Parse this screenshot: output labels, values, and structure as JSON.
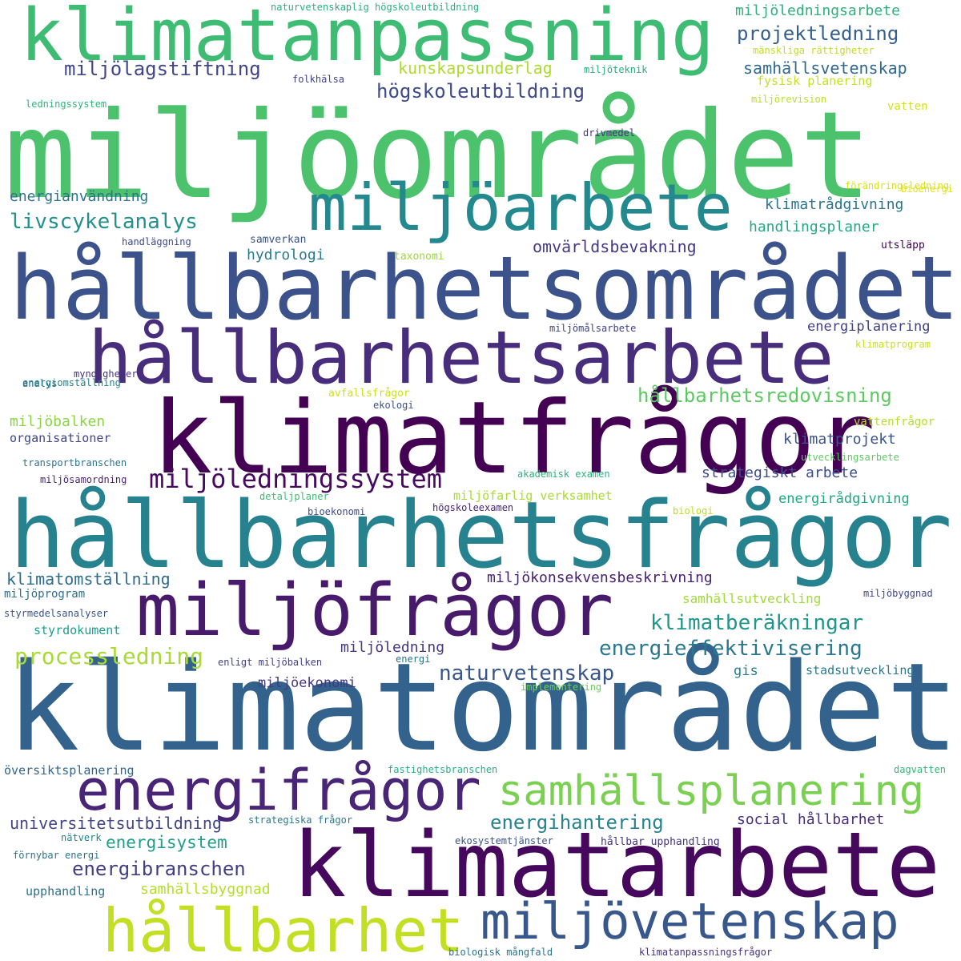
{
  "words": [
    {
      "text": "miljöområdet",
      "color": "#4cc26c"
    },
    {
      "text": "klimatområdet",
      "color": "#33638d"
    },
    {
      "text": "hållbarhetsområdet",
      "color": "#3b528b"
    },
    {
      "text": "hållbarhetsfrågor",
      "color": "#26828e"
    },
    {
      "text": "klimatfrågor",
      "color": "#440154"
    },
    {
      "text": "hållbarhetsarbete",
      "color": "#472d7b"
    },
    {
      "text": "klimatanpassning",
      "color": "#3fbc73"
    },
    {
      "text": "miljöarbete",
      "color": "#23898e"
    },
    {
      "text": "miljöfrågor",
      "color": "#481a6c"
    },
    {
      "text": "klimatarbete",
      "color": "#46085c"
    },
    {
      "text": "energifrågor",
      "color": "#482576"
    },
    {
      "text": "hållbarhet",
      "color": "#c2df23"
    },
    {
      "text": "miljövetenskap",
      "color": "#38588c"
    },
    {
      "text": "samhällsplanering",
      "color": "#7ad151"
    },
    {
      "text": "miljöledningssystem",
      "color": "#460b5e"
    },
    {
      "text": "livscykelanalys",
      "color": "#21918c"
    },
    {
      "text": "klimatberäkningar",
      "color": "#1f968b"
    },
    {
      "text": "hållbarhetsredovisning",
      "color": "#5ec962"
    },
    {
      "text": "energieffektivisering",
      "color": "#2a788e"
    },
    {
      "text": "processledning",
      "color": "#a8db34"
    },
    {
      "text": "naturvetenskap",
      "color": "#39568c"
    },
    {
      "text": "energihantering",
      "color": "#25848e"
    },
    {
      "text": "energibranschen",
      "color": "#433e85"
    },
    {
      "text": "universitetsutbildning",
      "color": "#414487"
    },
    {
      "text": "energisystem",
      "color": "#1f9e89"
    },
    {
      "text": "samhällsbyggnad",
      "color": "#b5de2b"
    },
    {
      "text": "social hållbarhet",
      "color": "#472f7d"
    },
    {
      "text": "miljölagstiftning",
      "color": "#404688"
    },
    {
      "text": "högskoleutbildning",
      "color": "#3e4a89"
    },
    {
      "text": "projektledning",
      "color": "#355f8d"
    },
    {
      "text": "kunskapsunderlag",
      "color": "#addc30"
    },
    {
      "text": "samhällsvetenskap",
      "color": "#31688e"
    },
    {
      "text": "miljöledningsarbete",
      "color": "#2db27d"
    },
    {
      "text": "omvärldsbevakning",
      "color": "#443a83"
    },
    {
      "text": "klimatrådgivning",
      "color": "#2a768e"
    },
    {
      "text": "handlingsplaner",
      "color": "#22a884"
    },
    {
      "text": "energianvändning",
      "color": "#2c738e"
    },
    {
      "text": "hydrologi",
      "color": "#287c8e"
    },
    {
      "text": "strategiskt arbete",
      "color": "#3d4d8a"
    },
    {
      "text": "klimatprojekt",
      "color": "#3b528b"
    },
    {
      "text": "energirådgivning",
      "color": "#21a685"
    },
    {
      "text": "klimatomställning",
      "color": "#2f6c8e"
    },
    {
      "text": "miljökonsekvensbeskrivning",
      "color": "#482173"
    },
    {
      "text": "miljöledning",
      "color": "#453781"
    },
    {
      "text": "miljöekonomi",
      "color": "#453882"
    },
    {
      "text": "energiplanering",
      "color": "#424086"
    },
    {
      "text": "miljöbalken",
      "color": "#8bd646"
    },
    {
      "text": "organisationer",
      "color": "#404588"
    },
    {
      "text": "samhällsutveckling",
      "color": "#a0da39"
    },
    {
      "text": "styrdokument",
      "color": "#1e9c89"
    },
    {
      "text": "översiktsplanering",
      "color": "#32658e"
    },
    {
      "text": "upphandling",
      "color": "#2d718e"
    },
    {
      "text": "gis",
      "color": "#277f8e"
    },
    {
      "text": "stadsutveckling",
      "color": "#2a788e"
    },
    {
      "text": "miljöprogram",
      "color": "#2e6e8e"
    },
    {
      "text": "naturvetenskaplig högskoleutbildning",
      "color": "#29af7f"
    },
    {
      "text": "mänskliga rättigheter",
      "color": "#bddf26"
    },
    {
      "text": "miljöteknik",
      "color": "#26ad81"
    },
    {
      "text": "folkhälsa",
      "color": "#424186"
    },
    {
      "text": "fysisk planering",
      "color": "#c8e020"
    },
    {
      "text": "ledningssystem",
      "color": "#2fb47c"
    },
    {
      "text": "miljörevision",
      "color": "#b8de29"
    },
    {
      "text": "vatten",
      "color": "#d2e21b"
    },
    {
      "text": "drivmedel",
      "color": "#46337f"
    },
    {
      "text": "förändringsledning",
      "color": "#d8e219"
    },
    {
      "text": "bioenergi",
      "color": "#e5e419"
    },
    {
      "text": "handläggning",
      "color": "#3e4989"
    },
    {
      "text": "samverkan",
      "color": "#3a548c"
    },
    {
      "text": "taxonomi",
      "color": "#9bd93c"
    },
    {
      "text": "utsläpp",
      "color": "#440154"
    },
    {
      "text": "miljömålsarbete",
      "color": "#404387"
    },
    {
      "text": "klimatprogram",
      "color": "#c5e021"
    },
    {
      "text": "analys",
      "color": "#2e6f8e"
    },
    {
      "text": "myndigheter",
      "color": "#46337f"
    },
    {
      "text": "energiomställning",
      "color": "#27808e"
    },
    {
      "text": "avfallsfrågor",
      "color": "#cde11d"
    },
    {
      "text": "ekologi",
      "color": "#3b528b"
    },
    {
      "text": "vattenfrågor",
      "color": "#b5de2b"
    },
    {
      "text": "utvecklingsarbete",
      "color": "#5ec962"
    },
    {
      "text": "transportbranschen",
      "color": "#2c728e"
    },
    {
      "text": "akademisk examen",
      "color": "#2db27d"
    },
    {
      "text": "miljösamordning",
      "color": "#481f70"
    },
    {
      "text": "miljöfarlig verksamhet",
      "color": "#a8db34"
    },
    {
      "text": "detaljplaner",
      "color": "#3dbc74"
    },
    {
      "text": "bioekonomi",
      "color": "#3e4c8a"
    },
    {
      "text": "högskoleexamen",
      "color": "#482576"
    },
    {
      "text": "biologi",
      "color": "#b8de29"
    },
    {
      "text": "styrmedelsanalyser",
      "color": "#3a548c"
    },
    {
      "text": "miljöbyggnad",
      "color": "#3f4889"
    },
    {
      "text": "enligt miljöbalken",
      "color": "#433e85"
    },
    {
      "text": "energi",
      "color": "#2c718e"
    },
    {
      "text": "implementering",
      "color": "#6ccd5a"
    },
    {
      "text": "fastighetsbranschen",
      "color": "#29af7f"
    },
    {
      "text": "dagvatten",
      "color": "#35b779"
    },
    {
      "text": "strategiska frågor",
      "color": "#2a788e"
    },
    {
      "text": "nätverk",
      "color": "#26828e"
    },
    {
      "text": "ekosystemtjänster",
      "color": "#3b528b"
    },
    {
      "text": "hållbar upphandling",
      "color": "#453781"
    },
    {
      "text": "förnybar energi",
      "color": "#2c728e"
    },
    {
      "text": "biologisk mångfald",
      "color": "#2c728e"
    },
    {
      "text": "klimatanpassningsfrågor",
      "color": "#46327e"
    }
  ]
}
